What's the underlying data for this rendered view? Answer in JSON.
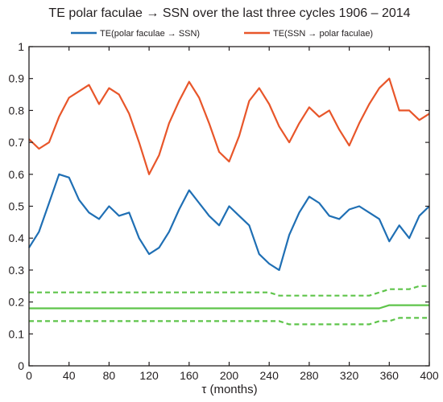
{
  "chart_data": {
    "type": "line",
    "title": "TE polar faculae → SSN over the last three cycles  1906 – 2014",
    "xlabel": "τ (months)",
    "ylabel": "",
    "xlim": [
      0,
      400
    ],
    "ylim": [
      0,
      1
    ],
    "xticks": [
      0,
      40,
      80,
      120,
      160,
      200,
      240,
      280,
      320,
      360,
      400
    ],
    "yticks": [
      0,
      0.1,
      0.2,
      0.3,
      0.4,
      0.5,
      0.6,
      0.7,
      0.8,
      0.9,
      1
    ],
    "grid": false,
    "legend_position": "top",
    "x": [
      0,
      10,
      20,
      30,
      40,
      50,
      60,
      70,
      80,
      90,
      100,
      110,
      120,
      130,
      140,
      150,
      160,
      170,
      180,
      190,
      200,
      210,
      220,
      230,
      240,
      250,
      260,
      270,
      280,
      290,
      300,
      310,
      320,
      330,
      340,
      350,
      360,
      370,
      380,
      390,
      400
    ],
    "series": [
      {
        "name": "TE(polar faculae → SSN)",
        "color": "#1f6fb4",
        "style": "solid",
        "values": [
          0.37,
          0.42,
          0.51,
          0.6,
          0.59,
          0.52,
          0.48,
          0.46,
          0.5,
          0.47,
          0.48,
          0.4,
          0.35,
          0.37,
          0.42,
          0.49,
          0.55,
          0.51,
          0.47,
          0.44,
          0.5,
          0.47,
          0.44,
          0.35,
          0.32,
          0.3,
          0.41,
          0.48,
          0.53,
          0.51,
          0.47,
          0.46,
          0.49,
          0.5,
          0.48,
          0.46,
          0.39,
          0.44,
          0.4,
          0.47,
          0.5
        ]
      },
      {
        "name": "TE(SSN → polar faculae)",
        "color": "#e8562a",
        "style": "solid",
        "values": [
          0.71,
          0.68,
          0.7,
          0.78,
          0.84,
          0.86,
          0.88,
          0.82,
          0.87,
          0.85,
          0.79,
          0.7,
          0.6,
          0.66,
          0.76,
          0.83,
          0.89,
          0.84,
          0.76,
          0.67,
          0.64,
          0.72,
          0.83,
          0.87,
          0.82,
          0.75,
          0.7,
          0.76,
          0.81,
          0.78,
          0.8,
          0.74,
          0.69,
          0.76,
          0.82,
          0.87,
          0.9,
          0.8,
          0.8,
          0.77,
          0.79
        ]
      },
      {
        "name": "",
        "color": "#5ec44a",
        "style": "solid",
        "values": [
          0.18,
          0.18,
          0.18,
          0.18,
          0.18,
          0.18,
          0.18,
          0.18,
          0.18,
          0.18,
          0.18,
          0.18,
          0.18,
          0.18,
          0.18,
          0.18,
          0.18,
          0.18,
          0.18,
          0.18,
          0.18,
          0.18,
          0.18,
          0.18,
          0.18,
          0.18,
          0.18,
          0.18,
          0.18,
          0.18,
          0.18,
          0.18,
          0.18,
          0.18,
          0.18,
          0.18,
          0.19,
          0.19,
          0.19,
          0.19,
          0.19
        ]
      },
      {
        "name": "",
        "color": "#5ec44a",
        "style": "dashed",
        "values": [
          0.23,
          0.23,
          0.23,
          0.23,
          0.23,
          0.23,
          0.23,
          0.23,
          0.23,
          0.23,
          0.23,
          0.23,
          0.23,
          0.23,
          0.23,
          0.23,
          0.23,
          0.23,
          0.23,
          0.23,
          0.23,
          0.23,
          0.23,
          0.23,
          0.23,
          0.22,
          0.22,
          0.22,
          0.22,
          0.22,
          0.22,
          0.22,
          0.22,
          0.22,
          0.22,
          0.23,
          0.24,
          0.24,
          0.24,
          0.25,
          0.25
        ]
      },
      {
        "name": "",
        "color": "#5ec44a",
        "style": "dashed",
        "values": [
          0.14,
          0.14,
          0.14,
          0.14,
          0.14,
          0.14,
          0.14,
          0.14,
          0.14,
          0.14,
          0.14,
          0.14,
          0.14,
          0.14,
          0.14,
          0.14,
          0.14,
          0.14,
          0.14,
          0.14,
          0.14,
          0.14,
          0.14,
          0.14,
          0.14,
          0.14,
          0.13,
          0.13,
          0.13,
          0.13,
          0.13,
          0.13,
          0.13,
          0.13,
          0.13,
          0.14,
          0.14,
          0.15,
          0.15,
          0.15,
          0.15
        ]
      }
    ]
  }
}
